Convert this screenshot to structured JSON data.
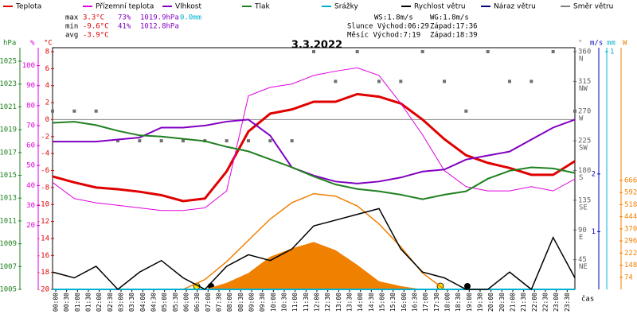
{
  "chart_data": {
    "type": "line",
    "title": "3.3.2022",
    "legend": [
      {
        "name": "Teplota",
        "color": "#e00000"
      },
      {
        "name": "Přízemní teplota",
        "color": "#e000e0"
      },
      {
        "name": "Vlhkost",
        "color": "#8000c0"
      },
      {
        "name": "Tlak",
        "color": "#208020"
      },
      {
        "name": "Srážky",
        "color": "#00b0d0"
      },
      {
        "name": "Rychlost větru",
        "color": "#000000"
      },
      {
        "name": "Náraz větru",
        "color": "#000080"
      },
      {
        "name": "Směr větru",
        "color": "#808080"
      }
    ],
    "stats": [
      {
        "label": "max",
        "temp": "3.3°C",
        "hum": "73%",
        "pres": "1019.9hPa",
        "rain": "0.0mm"
      },
      {
        "label": "min",
        "temp": "-9.6°C",
        "hum": "41%",
        "pres": "1012.8hPa"
      },
      {
        "label": "avg",
        "temp": "-3.9°C"
      }
    ],
    "info": [
      "WS:1.8m/s",
      "WG:1.8m/s",
      "Slunce Východ:06:29",
      "Západ:17:36",
      "Měsíc Východ:7:19",
      "Západ:18:39"
    ],
    "axis_units": {
      "hpa": "hPa",
      "pct": "%",
      "temp": "°C",
      "deg": "°",
      "ms": "m/s",
      "mm": "mm",
      "w": "W"
    },
    "xlabel": "čas",
    "categories": [
      "00:00",
      "00:30",
      "01:00",
      "01:30",
      "02:00",
      "02:30",
      "03:00",
      "03:30",
      "04:00",
      "04:30",
      "05:00",
      "05:30",
      "06:00",
      "06:30",
      "07:00",
      "07:30",
      "08:00",
      "08:30",
      "09:00",
      "09:30",
      "10:00",
      "10:30",
      "11:00",
      "11:30",
      "12:00",
      "12:30",
      "13:00",
      "13:30",
      "14:00",
      "14:30",
      "15:00",
      "15:30",
      "16:00",
      "16:30",
      "17:00",
      "17:30",
      "18:00",
      "18:30",
      "19:00",
      "19:30",
      "20:00",
      "20:30",
      "21:00",
      "21:30",
      "22:00",
      "22:30",
      "23:00",
      "23:30"
    ],
    "x": [
      0,
      1,
      2,
      3,
      4,
      5,
      6,
      7,
      8,
      9,
      10,
      11,
      12,
      13,
      14,
      15,
      16,
      17,
      18,
      19,
      20,
      21,
      22,
      23,
      24
    ],
    "xlim": [
      0,
      24
    ],
    "ylim": [
      -20,
      8
    ],
    "yticks": [
      -20,
      -18,
      -16,
      -14,
      -12,
      -10,
      -8,
      -6,
      -4,
      -2,
      0,
      2,
      4,
      6,
      8
    ],
    "hpa_lim": [
      1005,
      1025.84
    ],
    "hpa_ticks": [
      1005,
      1007,
      1009,
      1011,
      1013,
      1015,
      1017,
      1019,
      1021,
      1023,
      1025
    ],
    "pct_lim": [
      -12,
      107
    ],
    "pct_ticks": [
      20,
      30,
      40,
      50,
      60,
      70,
      80,
      90,
      100
    ],
    "deg_lim": [
      0,
      360
    ],
    "deg_ticks": [
      45,
      90,
      135,
      180,
      225,
      270,
      315,
      360
    ],
    "compass": [
      "NE",
      "E",
      "SE",
      "S",
      "SW",
      "W",
      "NW",
      "N"
    ],
    "ms_lim": [
      0,
      4.12
    ],
    "ms_ticks": [
      1,
      2
    ],
    "mm_lim": [
      0,
      1
    ],
    "mm_ticks": [
      1
    ],
    "w_lim": [
      0,
      1453
    ],
    "w_ticks": [
      74,
      148,
      222,
      296,
      370,
      444,
      518,
      592,
      666
    ],
    "zero_line": 0,
    "series": [
      {
        "name": "Teplota",
        "color": "#e00000",
        "scale": "temp",
        "width": 3,
        "values": [
          -6.7,
          -7.4,
          -8.0,
          -8.2,
          -8.5,
          -8.9,
          -9.6,
          -9.3,
          -6.1,
          -1.4,
          0.7,
          1.2,
          2.1,
          2.1,
          3.0,
          2.7,
          1.9,
          0.0,
          -2.3,
          -4.2,
          -5.1,
          -5.7,
          -6.5,
          -6.5,
          -4.9
        ]
      },
      {
        "name": "Přízemní teplota",
        "color": "#e000e0",
        "scale": "temp",
        "width": 1,
        "values": [
          -7.4,
          -9.3,
          -9.8,
          -10.1,
          -10.4,
          -10.7,
          -10.7,
          -10.4,
          -8.4,
          2.8,
          3.8,
          4.2,
          5.2,
          5.7,
          6.1,
          5.2,
          1.9,
          -1.8,
          -6.0,
          -7.9,
          -8.4,
          -8.4,
          -7.9,
          -8.4,
          -7.0
        ]
      },
      {
        "name": "Vlhkost",
        "color": "#8000c0",
        "scale": "pct",
        "width": 2,
        "values": [
          62,
          62,
          62,
          63,
          64,
          69,
          69,
          70,
          72,
          73,
          65,
          49,
          45,
          42,
          41,
          42,
          44,
          47,
          48,
          53,
          55,
          57,
          63,
          69,
          73
        ]
      },
      {
        "name": "Tlak",
        "color": "#208020",
        "scale": "hpa",
        "width": 2,
        "values": [
          1019.6,
          1019.7,
          1019.4,
          1018.9,
          1018.5,
          1018.4,
          1018.2,
          1018.0,
          1017.5,
          1017.1,
          1016.4,
          1015.7,
          1014.9,
          1014.2,
          1013.8,
          1013.6,
          1013.3,
          1012.9,
          1013.3,
          1013.6,
          1014.7,
          1015.4,
          1015.7,
          1015.6,
          1015.2
        ]
      },
      {
        "name": "Srážky",
        "color": "#00b0d0",
        "scale": "mm",
        "width": 2,
        "values": [
          0,
          0,
          0,
          0,
          0,
          0,
          0,
          0,
          0,
          0,
          0,
          0,
          0,
          0,
          0,
          0,
          0,
          0,
          0,
          0,
          0,
          0,
          0,
          0,
          0
        ]
      },
      {
        "name": "Rychlost větru",
        "color": "#000000",
        "scale": "ms",
        "width": 1.5,
        "values": [
          0.3,
          0.2,
          0.4,
          0,
          0.3,
          0.5,
          0.2,
          0,
          0.4,
          0.6,
          0.5,
          0.7,
          1.1,
          1.2,
          1.3,
          1.4,
          0.7,
          0.3,
          0.2,
          0,
          0,
          0.3,
          0,
          0.9,
          0.2
        ]
      }
    ],
    "solar": {
      "color": "#f08000",
      "theory": [
        0,
        0,
        0,
        0,
        0,
        0,
        0,
        60,
        170,
        300,
        430,
        530,
        585,
        570,
        510,
        400,
        260,
        100,
        0,
        0,
        0,
        0,
        0,
        0,
        0
      ],
      "measured": [
        0,
        0,
        0,
        0,
        0,
        0,
        0,
        0,
        40,
        100,
        200,
        250,
        290,
        240,
        150,
        50,
        20,
        0,
        0,
        0,
        0,
        0,
        0,
        0,
        0
      ]
    },
    "direction": {
      "name": "Směr větru",
      "color": "#707070",
      "values": [
        270,
        270,
        270,
        225,
        225,
        225,
        225,
        225,
        225,
        225,
        225,
        225,
        360,
        315,
        360,
        315,
        315,
        360,
        315,
        270,
        360,
        315,
        315,
        360,
        270
      ]
    }
  }
}
